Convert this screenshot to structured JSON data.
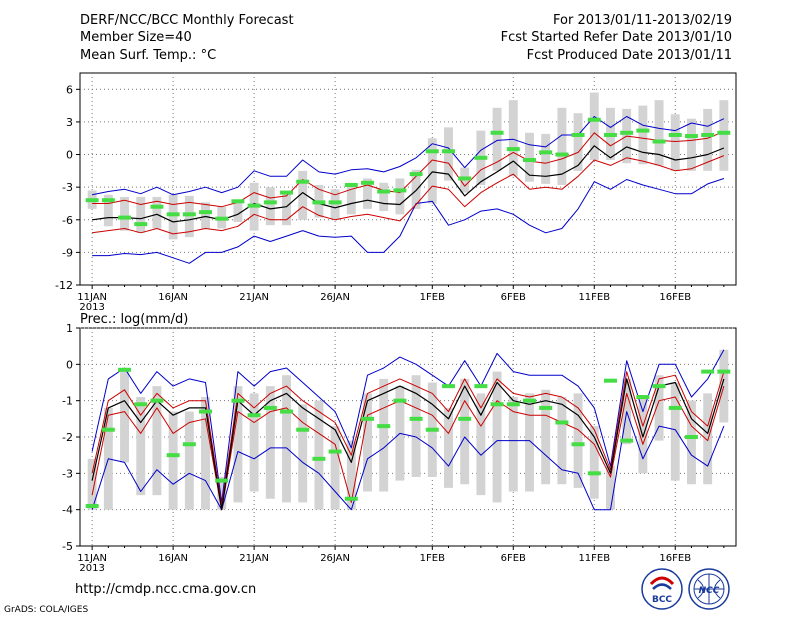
{
  "header": {
    "title": "DERF/NCC/BCC Monthly Forecast",
    "member_size": "Member Size=40",
    "variable1": "Mean Surf. Temp.: °C",
    "period": "For 2013/01/11-2013/02/19",
    "start_date": "Fcst Started Refer Date 2013/01/10",
    "produced_date": "Fcst Produced Date 2013/01/11"
  },
  "footer": {
    "url": "http://cmdp.ncc.cma.gov.cn",
    "grads": "GrADS: COLA/IGES",
    "logo1_text": "BCC",
    "logo2_text": "NCC"
  },
  "colors": {
    "mean": "#000000",
    "p": "#cc0000",
    "extreme": "#0000cc",
    "box": "#d3d3d3",
    "median": "#44dd44"
  },
  "chart_data": [
    {
      "type": "line",
      "title": "Mean Surf. Temp.: °C",
      "xlabel": "",
      "ylabel": "",
      "ylim": [
        -12,
        7.5
      ],
      "yticks": [
        -12,
        -9,
        -6,
        -3,
        0,
        3,
        6
      ],
      "x_tick_labels": [
        "11JAN",
        "16JAN",
        "21JAN",
        "26JAN",
        "1FEB",
        "6FEB",
        "11FEB",
        "16FEB"
      ],
      "x_tick_days": [
        1,
        6,
        11,
        16,
        22,
        27,
        32,
        37
      ],
      "year_label": "2013",
      "days": [
        1,
        2,
        3,
        4,
        5,
        6,
        7,
        8,
        9,
        10,
        11,
        12,
        13,
        14,
        15,
        16,
        17,
        18,
        19,
        20,
        21,
        22,
        23,
        24,
        25,
        26,
        27,
        28,
        29,
        30,
        31,
        32,
        33,
        34,
        35,
        36,
        37,
        38,
        39,
        40
      ],
      "series": [
        {
          "name": "max",
          "values": [
            -3.7,
            -3.4,
            -3.2,
            -3.6,
            -3.0,
            -3.7,
            -3.4,
            -3.0,
            -3.5,
            -3.0,
            -1.5,
            -2.0,
            -2.0,
            -0.5,
            -1.6,
            -1.8,
            -1.4,
            -1.3,
            -1.6,
            -1.1,
            -0.3,
            1.0,
            0.6,
            -1.2,
            0.4,
            1.3,
            1.4,
            0.9,
            0.7,
            1.8,
            1.8,
            3.5,
            2.5,
            3.5,
            2.7,
            2.4,
            2.2,
            2.9,
            2.6,
            3.3
          ]
        },
        {
          "name": "p84",
          "values": [
            -4.5,
            -4.5,
            -4.2,
            -4.6,
            -4.3,
            -4.6,
            -4.4,
            -4.6,
            -4.8,
            -4.4,
            -3.5,
            -4.0,
            -3.8,
            -2.3,
            -3.2,
            -3.7,
            -3.2,
            -2.8,
            -3.3,
            -3.5,
            -2.0,
            -0.5,
            -0.8,
            -2.9,
            -1.4,
            -0.7,
            0.2,
            -0.6,
            -0.8,
            -0.4,
            0.2,
            2.0,
            0.8,
            1.7,
            1.5,
            1.3,
            1.2,
            1.3,
            1.5,
            2.1
          ]
        },
        {
          "name": "mean",
          "values": [
            -6.0,
            -5.8,
            -5.8,
            -5.9,
            -5.5,
            -6.2,
            -6.0,
            -5.7,
            -6.0,
            -5.5,
            -4.5,
            -5.0,
            -4.8,
            -3.5,
            -4.5,
            -4.9,
            -4.5,
            -4.2,
            -4.5,
            -4.6,
            -3.3,
            -1.6,
            -1.8,
            -3.8,
            -2.5,
            -1.6,
            -0.6,
            -1.9,
            -2.0,
            -1.8,
            -1.0,
            0.8,
            -0.3,
            0.7,
            0.2,
            0.0,
            -0.5,
            -0.3,
            0.0,
            0.6
          ]
        },
        {
          "name": "p16",
          "values": [
            -7.2,
            -7.0,
            -6.8,
            -7.2,
            -6.8,
            -7.3,
            -7.1,
            -6.8,
            -7.0,
            -6.6,
            -5.5,
            -6.0,
            -6.0,
            -4.8,
            -5.6,
            -6.0,
            -5.7,
            -5.5,
            -5.8,
            -6.1,
            -4.6,
            -2.9,
            -3.2,
            -4.8,
            -3.5,
            -2.6,
            -1.8,
            -3.2,
            -3.0,
            -3.2,
            -2.0,
            -0.5,
            -1.0,
            -0.3,
            -0.6,
            -1.0,
            -1.5,
            -1.3,
            -0.7,
            -0.1
          ]
        },
        {
          "name": "min",
          "values": [
            -9.3,
            -9.3,
            -9.1,
            -9.2,
            -9.0,
            -9.5,
            -10.0,
            -9.0,
            -9.0,
            -8.5,
            -7.5,
            -8.0,
            -7.5,
            -7.0,
            -7.5,
            -7.6,
            -7.5,
            -9.0,
            -9.0,
            -7.5,
            -4.5,
            -4.3,
            -6.5,
            -6.0,
            -5.2,
            -5.0,
            -5.5,
            -6.5,
            -7.2,
            -6.8,
            -5.0,
            -2.5,
            -3.2,
            -2.3,
            -2.8,
            -3.2,
            -3.6,
            -3.6,
            -2.7,
            -2.2
          ]
        },
        {
          "name": "box_top",
          "values": [
            -3.3,
            -3.7,
            -3.9,
            -3.9,
            -3.9,
            -3.7,
            -3.8,
            -4.4,
            -4.8,
            -4.2,
            -2.6,
            -3.0,
            -3.4,
            -1.5,
            -2.8,
            -3.2,
            -2.6,
            -2.2,
            -2.6,
            -2.2,
            -1.4,
            1.5,
            2.5,
            -1.2,
            2.2,
            4.3,
            5.0,
            2.0,
            1.9,
            4.3,
            3.8,
            5.7,
            4.3,
            4.2,
            4.5,
            5.0,
            3.7,
            3.3,
            4.2,
            5.0
          ]
        },
        {
          "name": "box_bottom",
          "values": [
            -5.0,
            -6.6,
            -7.0,
            -7.2,
            -6.8,
            -7.8,
            -7.6,
            -6.8,
            -6.8,
            -6.2,
            -7.0,
            -6.5,
            -6.5,
            -6.0,
            -5.8,
            -6.0,
            -5.5,
            -5.0,
            -5.2,
            -5.5,
            -5.0,
            -4.5,
            -2.4,
            -3.5,
            -2.8,
            -1.5,
            -2.0,
            -2.5,
            -2.7,
            -2.8,
            -1.5,
            -0.5,
            -0.5,
            -0.8,
            -0.9,
            -1.0,
            -1.5,
            -1.5,
            -1.5,
            -1.5
          ]
        },
        {
          "name": "median",
          "values": [
            -4.2,
            -4.2,
            -5.8,
            -6.4,
            -4.8,
            -5.5,
            -5.5,
            -5.3,
            -5.9,
            -4.3,
            -4.7,
            -4.4,
            -3.5,
            -2.5,
            -4.4,
            -4.4,
            -2.8,
            -2.6,
            -3.4,
            -3.3,
            -1.8,
            0.3,
            0.3,
            -2.2,
            -0.3,
            2.0,
            0.5,
            -0.5,
            0.2,
            0.0,
            1.8,
            3.2,
            1.8,
            2.0,
            2.2,
            1.2,
            1.8,
            1.7,
            1.8,
            2.0
          ]
        }
      ]
    },
    {
      "type": "line",
      "title": "Prec.: log(mm/d)",
      "xlabel": "",
      "ylabel": "",
      "ylim": [
        -5,
        1
      ],
      "yticks": [
        -5,
        -4,
        -3,
        -2,
        -1,
        0,
        1
      ],
      "x_tick_labels": [
        "11JAN",
        "16JAN",
        "21JAN",
        "26JAN",
        "1FEB",
        "6FEB",
        "11FEB",
        "16FEB"
      ],
      "x_tick_days": [
        1,
        6,
        11,
        16,
        22,
        27,
        32,
        37
      ],
      "year_label": "2013",
      "days": [
        1,
        2,
        3,
        4,
        5,
        6,
        7,
        8,
        9,
        10,
        11,
        12,
        13,
        14,
        15,
        16,
        17,
        18,
        19,
        20,
        21,
        22,
        23,
        24,
        25,
        26,
        27,
        28,
        29,
        30,
        31,
        32,
        33,
        34,
        35,
        36,
        37,
        38,
        39,
        40
      ],
      "series": [
        {
          "name": "max",
          "values": [
            -2.4,
            -0.4,
            -0.1,
            -0.8,
            -0.2,
            -0.6,
            -0.4,
            -0.5,
            -3.8,
            -0.2,
            -0.6,
            -0.2,
            -0.1,
            -0.5,
            -0.9,
            -1.3,
            -2.3,
            -0.3,
            -0.1,
            0.2,
            0.0,
            -0.3,
            -0.6,
            0.1,
            -0.6,
            0.3,
            -0.2,
            -0.3,
            -0.3,
            -0.3,
            -0.6,
            -1.2,
            -2.8,
            0.1,
            -1.3,
            0.0,
            0.0,
            -0.9,
            -0.4,
            0.4
          ]
        },
        {
          "name": "p84",
          "values": [
            -3.0,
            -1.0,
            -0.7,
            -1.4,
            -0.8,
            -1.2,
            -1.0,
            -1.0,
            -3.9,
            -0.8,
            -1.2,
            -0.8,
            -0.6,
            -1.0,
            -1.3,
            -1.6,
            -2.5,
            -0.8,
            -0.6,
            -0.4,
            -0.6,
            -0.8,
            -1.3,
            -0.4,
            -1.2,
            -0.4,
            -0.8,
            -0.9,
            -0.8,
            -0.9,
            -1.2,
            -1.8,
            -2.9,
            -0.2,
            -1.7,
            -0.4,
            -0.3,
            -1.3,
            -1.7,
            -0.2
          ]
        },
        {
          "name": "mean",
          "values": [
            -3.2,
            -1.2,
            -1.0,
            -1.6,
            -1.0,
            -1.4,
            -1.2,
            -1.2,
            -4.0,
            -1.0,
            -1.4,
            -1.0,
            -0.8,
            -1.2,
            -1.5,
            -1.8,
            -2.7,
            -1.0,
            -0.8,
            -0.6,
            -0.8,
            -1.1,
            -1.5,
            -0.6,
            -1.4,
            -0.5,
            -1.0,
            -1.1,
            -1.0,
            -1.1,
            -1.4,
            -2.0,
            -3.0,
            -0.4,
            -2.0,
            -0.6,
            -0.5,
            -1.5,
            -1.9,
            -0.4
          ]
        },
        {
          "name": "p16",
          "values": [
            -3.6,
            -1.4,
            -1.3,
            -1.9,
            -1.2,
            -1.9,
            -1.6,
            -1.5,
            -4.0,
            -1.3,
            -1.6,
            -1.3,
            -1.2,
            -1.6,
            -1.9,
            -2.2,
            -3.8,
            -1.4,
            -1.2,
            -1.0,
            -1.2,
            -1.4,
            -1.9,
            -1.0,
            -1.7,
            -1.0,
            -1.3,
            -1.4,
            -1.4,
            -1.6,
            -1.8,
            -2.2,
            -3.1,
            -0.8,
            -2.2,
            -1.0,
            -0.9,
            -1.7,
            -2.1,
            -0.6
          ]
        },
        {
          "name": "min",
          "values": [
            -4.0,
            -2.6,
            -2.7,
            -3.5,
            -2.9,
            -3.3,
            -3.0,
            -3.2,
            -4.0,
            -2.4,
            -2.6,
            -2.3,
            -2.3,
            -2.7,
            -3.0,
            -3.5,
            -4.0,
            -2.6,
            -2.3,
            -1.9,
            -2.0,
            -2.3,
            -2.8,
            -2.0,
            -2.5,
            -2.1,
            -2.1,
            -2.1,
            -2.5,
            -2.9,
            -3.0,
            -4.0,
            -4.0,
            -1.3,
            -2.6,
            -1.7,
            -1.8,
            -2.5,
            -2.8,
            -1.7
          ]
        },
        {
          "name": "box_top",
          "values": [
            -2.6,
            -1.2,
            -0.1,
            -0.9,
            -0.6,
            -1.3,
            -1.3,
            -0.9,
            -3.1,
            -0.6,
            -0.8,
            -0.6,
            -0.3,
            -1.1,
            -1.0,
            -1.7,
            -2.1,
            -0.8,
            -0.4,
            -0.6,
            -0.3,
            -0.5,
            -1.2,
            -0.4,
            -0.8,
            -0.2,
            -0.9,
            -0.8,
            -0.7,
            -0.9,
            -0.8,
            -1.7,
            -2.8,
            -0.4,
            -0.9,
            -0.3,
            -0.5,
            -1.0,
            -0.8,
            0.4
          ]
        },
        {
          "name": "box_bottom",
          "values": [
            -4.0,
            -4.0,
            -2.7,
            -3.6,
            -3.6,
            -4.0,
            -4.0,
            -4.0,
            -4.0,
            -3.8,
            -3.5,
            -3.7,
            -3.8,
            -3.8,
            -4.0,
            -4.0,
            -4.0,
            -3.5,
            -3.5,
            -3.2,
            -3.1,
            -3.1,
            -3.4,
            -3.3,
            -3.6,
            -3.8,
            -3.5,
            -3.5,
            -3.3,
            -3.3,
            -3.4,
            -3.7,
            -4.0,
            -2.2,
            -3.0,
            -2.1,
            -3.2,
            -3.3,
            -3.3,
            -1.6
          ]
        },
        {
          "name": "median",
          "values": [
            -3.9,
            -1.8,
            -0.15,
            -1.1,
            -1.0,
            -2.5,
            -2.2,
            -1.3,
            -3.2,
            -1.0,
            -1.4,
            -1.2,
            -1.3,
            -1.8,
            -2.6,
            -2.4,
            -3.7,
            -1.5,
            -1.7,
            -1.0,
            -1.5,
            -1.8,
            -0.6,
            -1.5,
            -0.6,
            -1.1,
            -1.1,
            -1.0,
            -1.2,
            -1.6,
            -2.2,
            -3.0,
            -0.45,
            -2.1,
            -0.9,
            -0.6,
            -1.2,
            -2.0,
            -0.2,
            -0.2
          ]
        }
      ]
    }
  ]
}
